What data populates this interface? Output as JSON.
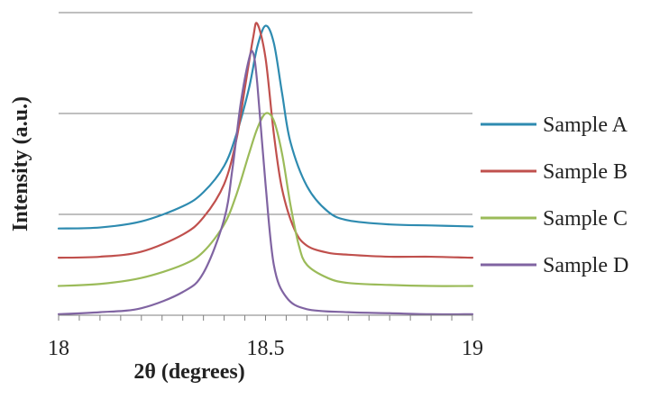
{
  "chart_data": {
    "type": "line",
    "title": "",
    "xlabel": "2θ (degrees)",
    "ylabel": "Intensity (a.u.)",
    "xlim": [
      18,
      19
    ],
    "ylim": [
      0,
      3
    ],
    "x_ticks_labeled": [
      "18",
      "18.5",
      "19"
    ],
    "x_minor_tick_step": 0.05,
    "y_tick_labels_shown": false,
    "gridlines_y": [
      1,
      2,
      3
    ],
    "grid": "horizontal major gridlines",
    "legend_position": "right",
    "series": [
      {
        "name": "Sample A",
        "color": "#2e8bb0",
        "x": [
          18.0,
          18.1,
          18.2,
          18.3,
          18.35,
          18.4,
          18.43,
          18.46,
          18.48,
          18.5,
          18.52,
          18.54,
          18.56,
          18.6,
          18.65,
          18.7,
          18.8,
          18.9,
          19.0
        ],
        "y": [
          0.86,
          0.87,
          0.93,
          1.08,
          1.22,
          1.48,
          1.8,
          2.25,
          2.66,
          2.87,
          2.7,
          2.2,
          1.72,
          1.28,
          1.03,
          0.94,
          0.9,
          0.89,
          0.88
        ]
      },
      {
        "name": "Sample B",
        "color": "#c0504d",
        "x": [
          18.0,
          18.1,
          18.2,
          18.3,
          18.35,
          18.4,
          18.43,
          18.45,
          18.47,
          18.48,
          18.5,
          18.52,
          18.54,
          18.57,
          18.6,
          18.65,
          18.7,
          18.8,
          18.9,
          19.0
        ],
        "y": [
          0.57,
          0.58,
          0.63,
          0.8,
          0.97,
          1.3,
          1.75,
          2.25,
          2.75,
          2.89,
          2.55,
          1.8,
          1.25,
          0.85,
          0.69,
          0.62,
          0.6,
          0.58,
          0.58,
          0.57
        ]
      },
      {
        "name": "Sample C",
        "color": "#9bbb59",
        "x": [
          18.0,
          18.1,
          18.2,
          18.3,
          18.35,
          18.4,
          18.43,
          18.46,
          18.48,
          18.5,
          18.52,
          18.54,
          18.56,
          18.58,
          18.6,
          18.65,
          18.7,
          18.8,
          18.9,
          19.0
        ],
        "y": [
          0.29,
          0.31,
          0.37,
          0.5,
          0.63,
          0.9,
          1.2,
          1.6,
          1.85,
          2.0,
          1.93,
          1.6,
          1.1,
          0.7,
          0.5,
          0.37,
          0.32,
          0.3,
          0.29,
          0.29
        ]
      },
      {
        "name": "Sample D",
        "color": "#8064a2",
        "x": [
          18.0,
          18.1,
          18.2,
          18.3,
          18.35,
          18.4,
          18.42,
          18.44,
          18.46,
          18.47,
          18.48,
          18.5,
          18.52,
          18.55,
          18.6,
          18.7,
          18.8,
          18.9,
          19.0
        ],
        "y": [
          0.01,
          0.03,
          0.07,
          0.23,
          0.42,
          0.95,
          1.45,
          2.1,
          2.54,
          2.6,
          2.3,
          1.3,
          0.5,
          0.18,
          0.06,
          0.03,
          0.02,
          0.01,
          0.01
        ]
      }
    ]
  }
}
